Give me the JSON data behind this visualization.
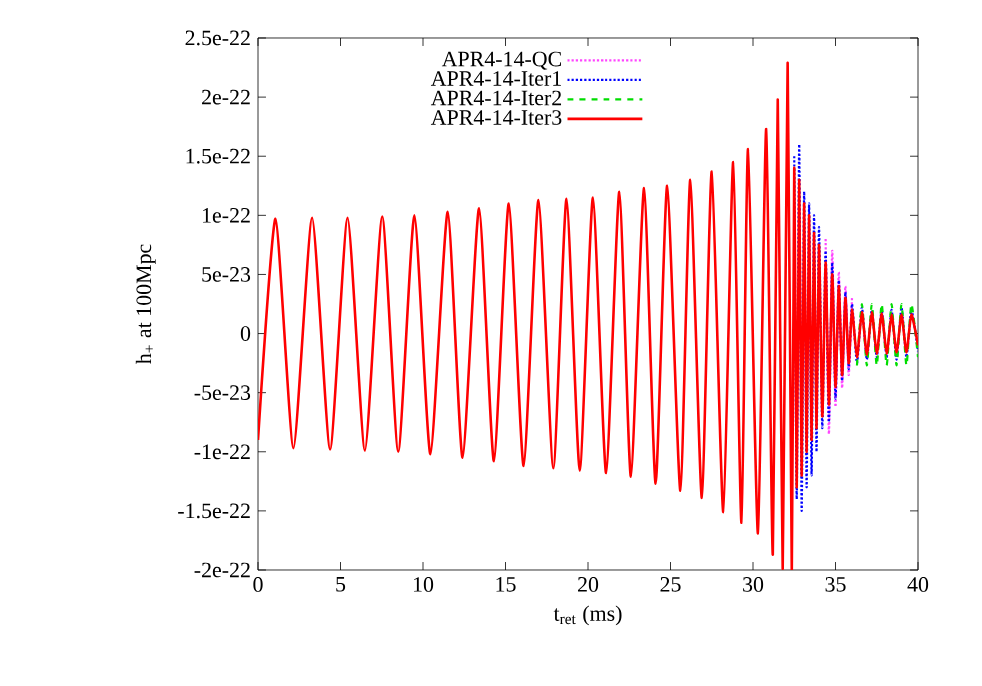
{
  "chart_data": {
    "type": "line",
    "xlabel": "t$_{ret}$ (ms)",
    "ylabel": "h$_{+}$ at 100Mpc",
    "xlim": [
      0,
      40
    ],
    "xticks": [
      0,
      5,
      10,
      15,
      20,
      25,
      30,
      35,
      40
    ],
    "ylim": [
      -2e-22,
      2.5e-22
    ],
    "yticks": [
      -2e-22,
      -1.5e-22,
      -1e-22,
      -5e-23,
      0,
      5e-23,
      1e-22,
      1.5e-22,
      2e-22,
      2.5e-22
    ],
    "grid": false,
    "legend": "top",
    "marker": "none",
    "x": [
      0,
      1.06,
      2.15,
      3.28,
      4.37,
      5.43,
      6.48,
      7.53,
      8.5,
      9.48,
      10.45,
      11.5,
      12.4,
      13.4,
      14.3,
      15.2,
      16.1,
      17.0,
      17.9,
      18.7,
      19.5,
      20.3,
      21.1,
      21.9,
      22.6,
      23.4,
      24.1,
      24.8,
      25.6,
      26.2,
      26.9,
      27.5,
      28.2,
      28.8,
      29.3,
      29.7,
      30.3,
      30.8,
      31.2,
      31.5,
      31.8,
      32.1,
      32.35,
      32.5,
      32.65,
      32.8,
      32.95,
      33.1,
      33.25,
      33.4,
      33.55,
      33.7,
      33.85,
      34.0,
      34.2,
      34.4,
      34.6,
      34.8,
      35.0,
      35.2,
      35.4,
      35.6,
      35.8,
      36.0,
      36.3,
      36.6,
      36.9,
      37.2,
      37.5,
      37.8,
      38.1,
      38.4,
      38.7,
      39.0,
      39.3,
      39.6,
      40
    ],
    "series": [
      {
        "name": "APR4-14-QC",
        "color": "#ff44ff",
        "line_style": "dotted",
        "values": [
          null,
          null,
          null,
          null,
          null,
          null,
          null,
          null,
          null,
          null,
          null,
          null,
          null,
          null,
          null,
          null,
          null,
          null,
          null,
          null,
          null,
          null,
          null,
          null,
          null,
          null,
          null,
          null,
          null,
          null,
          null,
          null,
          null,
          null,
          null,
          null,
          null,
          null,
          null,
          null,
          null,
          null,
          null,
          null,
          null,
          null,
          null,
          null,
          null,
          null,
          null,
          null,
          null,
          null,
          null,
          8e-23,
          -8.5e-23,
          7e-23,
          -6.2e-23,
          5.2e-23,
          -4.6e-23,
          4e-23,
          -3.5e-23,
          3e-23,
          null,
          null,
          null,
          null,
          null,
          null,
          null,
          null,
          null,
          null,
          null,
          null,
          null
        ]
      },
      {
        "name": "APR4-14-Iter1",
        "color": "#0000ff",
        "line_style": "dotted",
        "values": [
          null,
          null,
          null,
          null,
          null,
          null,
          null,
          null,
          null,
          null,
          null,
          null,
          null,
          null,
          null,
          null,
          null,
          null,
          null,
          null,
          null,
          null,
          null,
          null,
          null,
          null,
          null,
          null,
          null,
          null,
          null,
          null,
          null,
          null,
          null,
          null,
          null,
          null,
          null,
          null,
          null,
          null,
          null,
          1.5e-22,
          -1.4e-22,
          1.6e-22,
          -1.5e-22,
          1.2e-22,
          -1.3e-22,
          1.1e-22,
          -1.2e-22,
          1e-22,
          -1e-22,
          9e-23,
          -8e-23,
          7e-23,
          -7.5e-23,
          6e-23,
          -5.5e-23,
          4.5e-23,
          -4e-23,
          3.5e-23,
          -3e-23,
          2.5e-23,
          -2.5e-23,
          2.2e-23,
          -2.2e-23,
          2e-23,
          -2e-23,
          2e-23,
          -2e-23,
          2e-23,
          -2.2e-23,
          2.2e-23,
          -2e-23,
          2e-23,
          -1.5e-23
        ]
      },
      {
        "name": "APR4-14-Iter2",
        "color": "#00dd00",
        "line_style": "dashed",
        "values": [
          null,
          null,
          null,
          null,
          null,
          null,
          null,
          null,
          null,
          null,
          null,
          null,
          null,
          null,
          null,
          null,
          null,
          null,
          null,
          null,
          null,
          null,
          null,
          null,
          null,
          null,
          null,
          null,
          null,
          null,
          null,
          null,
          null,
          null,
          null,
          null,
          null,
          null,
          null,
          null,
          null,
          null,
          null,
          null,
          null,
          null,
          null,
          null,
          null,
          null,
          null,
          null,
          null,
          null,
          null,
          null,
          null,
          null,
          null,
          null,
          null,
          null,
          null,
          null,
          -2.7e-23,
          2.5e-23,
          -2.7e-23,
          2.5e-23,
          -2.7e-23,
          2.5e-23,
          -2.7e-23,
          2.5e-23,
          -2.7e-23,
          2.5e-23,
          -2.7e-23,
          2.5e-23,
          -2e-23
        ]
      },
      {
        "name": "APR4-14-Iter3",
        "color": "#ff0000",
        "line_style": "solid",
        "values": [
          -9e-23,
          9.7e-23,
          -9.7e-23,
          9.8e-23,
          -9.8e-23,
          9.8e-23,
          -9.9e-23,
          9.9e-23,
          -1e-22,
          1e-22,
          -1.02e-22,
          1.03e-22,
          -1.05e-22,
          1.06e-22,
          -1.08e-22,
          1.1e-22,
          -1.12e-22,
          1.13e-22,
          -1.14e-22,
          1.14e-22,
          -1.16e-22,
          1.15e-22,
          -1.18e-22,
          1.2e-22,
          -1.21e-22,
          1.23e-22,
          -1.27e-22,
          1.25e-22,
          -1.33e-22,
          1.3e-22,
          -1.39e-22,
          1.37e-22,
          -1.51e-22,
          1.45e-22,
          -1.6e-22,
          1.56e-22,
          -1.69e-22,
          1.73e-22,
          -1.87e-22,
          1.98e-22,
          -1.99e-22,
          2.29e-22,
          -2e-22,
          1.4e-22,
          -1.3e-22,
          1.3e-22,
          -1.2e-22,
          1.1e-22,
          -1e-22,
          1e-22,
          -9e-23,
          8.5e-23,
          -8e-23,
          7.5e-23,
          -7e-23,
          6e-23,
          -6e-23,
          5e-23,
          -4.5e-23,
          4e-23,
          -3.5e-23,
          3e-23,
          -2.5e-23,
          2e-23,
          -2e-23,
          1.8e-23,
          -1.8e-23,
          1.8e-23,
          -1.7e-23,
          1.7e-23,
          -1.7e-23,
          1.6e-23,
          -1.6e-23,
          1.6e-23,
          -1.6e-23,
          1.6e-23,
          -1e-23
        ]
      }
    ]
  }
}
